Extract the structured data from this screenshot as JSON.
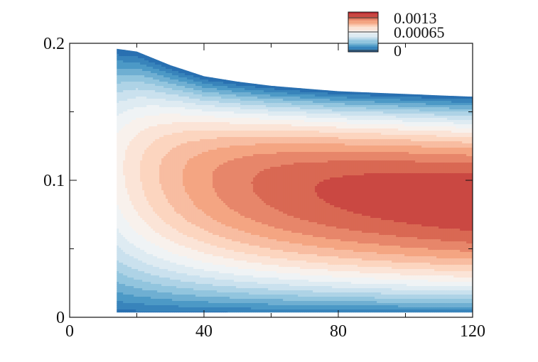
{
  "chart_data": {
    "type": "heatmap",
    "title": "",
    "xlabel": "",
    "ylabel": "",
    "xlim": [
      0,
      120
    ],
    "ylim": [
      0,
      0.2
    ],
    "xticks": [
      0,
      40,
      80,
      120
    ],
    "yticks": [
      0,
      0.1,
      0.2
    ],
    "xtick_labels": [
      "0",
      "40",
      "80",
      "120"
    ],
    "ytick_labels": [
      "0",
      "0.1",
      "0.2"
    ],
    "grid": false,
    "legend": {
      "position": "top-right",
      "labels": [
        "0.0013",
        "0.00065",
        "0"
      ],
      "values": [
        0.0013,
        0.00065,
        0
      ]
    },
    "colormap": [
      "#2166ac",
      "#4393c3",
      "#92c5de",
      "#d1e5f0",
      "#f7f7f7",
      "#fddbc7",
      "#f4a582",
      "#d6604d",
      "#b2182b"
    ],
    "vmin": 0,
    "vmax": 0.0013,
    "domain": {
      "x_start": 14,
      "x_end": 120,
      "bottom_y": 0.0035,
      "top_boundary": [
        [
          14,
          0.196
        ],
        [
          20,
          0.194
        ],
        [
          30,
          0.184
        ],
        [
          40,
          0.176
        ],
        [
          50,
          0.172
        ],
        [
          60,
          0.169
        ],
        [
          70,
          0.167
        ],
        [
          80,
          0.165
        ],
        [
          90,
          0.164
        ],
        [
          100,
          0.163
        ],
        [
          110,
          0.162
        ],
        [
          120,
          0.161
        ]
      ]
    },
    "peak": {
      "value": 0.00125,
      "x": 110,
      "y": 0.085
    },
    "field_model": "parabolic profile between walls, peak near channel core shifted toward lower wall, developing from inlet at x=14"
  }
}
